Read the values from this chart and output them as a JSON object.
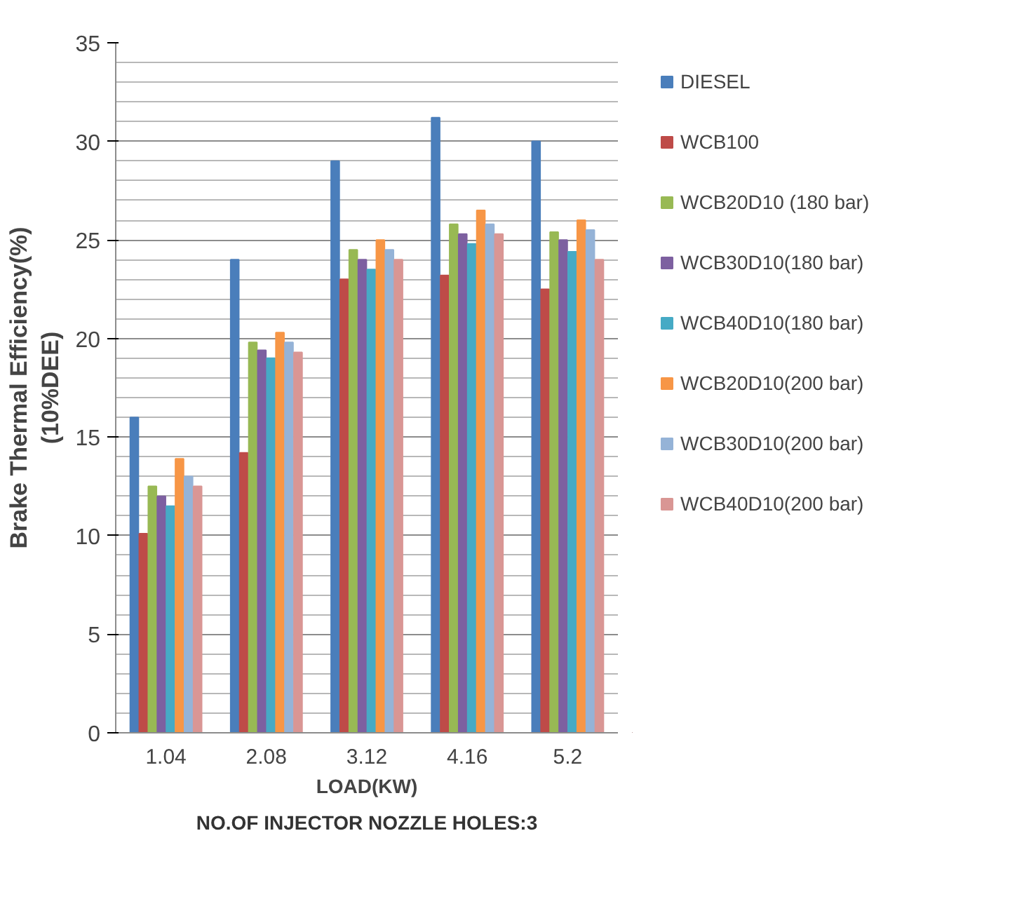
{
  "chart_data": {
    "type": "bar",
    "xlabel": "LOAD(KW)",
    "ylabel": "Brake Thermal Efficiency(%)\n(10%DEE)",
    "annotations": [
      "NO.OF INJECTOR NOZZLE HOLES:3"
    ],
    "categories": [
      "1.04",
      "2.08",
      "3.12",
      "4.16",
      "5.2"
    ],
    "series": [
      {
        "name": "DIESEL",
        "color": "#4a7ebb",
        "values": [
          16,
          24,
          29,
          31.2,
          30
        ]
      },
      {
        "name": "WCB100",
        "color": "#be4b48",
        "values": [
          10.1,
          14.2,
          23,
          23.2,
          22.5
        ]
      },
      {
        "name": "WCB20D10 (180 bar)",
        "color": "#98b954",
        "values": [
          12.5,
          19.8,
          24.5,
          25.8,
          25.4
        ]
      },
      {
        "name": "WCB30D10(180 bar)",
        "color": "#7d60a0",
        "values": [
          12,
          19.4,
          24,
          25.3,
          25
        ]
      },
      {
        "name": "WCB40D10(180 bar)",
        "color": "#46aac5",
        "values": [
          11.5,
          19,
          23.5,
          24.8,
          24.4
        ]
      },
      {
        "name": "WCB20D10(200 bar)",
        "color": "#f79646",
        "values": [
          13.9,
          20.3,
          25,
          26.5,
          26
        ]
      },
      {
        "name": "WCB30D10(200 bar)",
        "color": "#95b3d7",
        "values": [
          13,
          19.8,
          24.5,
          25.8,
          25.5
        ]
      },
      {
        "name": "WCB40D10(200 bar)",
        "color": "#d99694",
        "values": [
          12.5,
          19.3,
          24,
          25.3,
          24
        ]
      }
    ],
    "ylim": [
      0,
      35
    ],
    "yticks": [
      0,
      5,
      10,
      15,
      20,
      25,
      30,
      35
    ],
    "grid": "y",
    "legend": "right"
  }
}
